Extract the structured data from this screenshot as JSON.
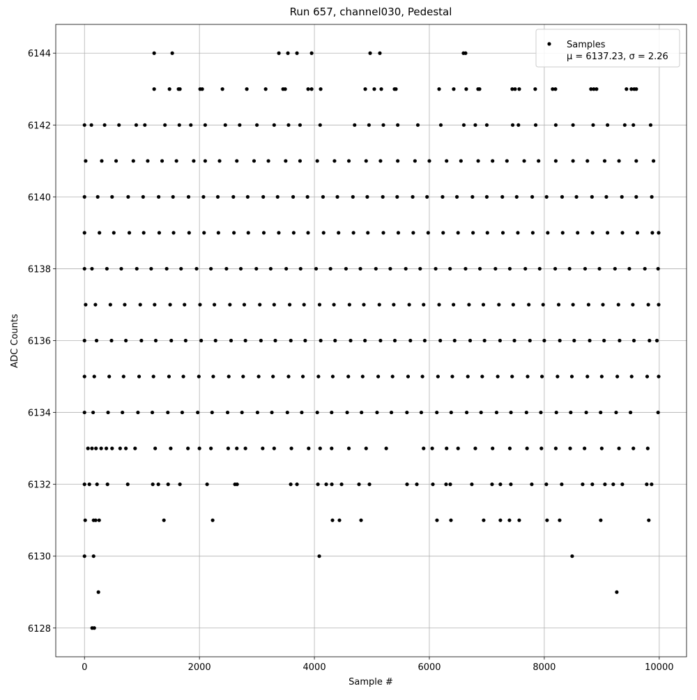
{
  "chart_data": {
    "type": "scatter",
    "title": "Run 657, channel030, Pedestal",
    "x_label": "Sample #",
    "y_label": "ADC Counts",
    "xlim": [
      -500,
      10475
    ],
    "ylim": [
      6127.2,
      6144.8
    ],
    "xticks": [
      0,
      2000,
      4000,
      6000,
      8000,
      10000
    ],
    "yticks": [
      6128,
      6130,
      6132,
      6134,
      6136,
      6138,
      6140,
      6142,
      6144
    ],
    "grid": true,
    "legend": "upper right",
    "legend_note": "μ = 6137.23, σ = 2.26",
    "series": [
      {
        "name": "Samples",
        "color": "#000000",
        "x": [
          1212,
          1527,
          3382,
          3539,
          3697,
          3952,
          4970,
          5139,
          6594,
          6630,
          1212,
          1479,
          1636,
          1660,
          2012,
          2048,
          2400,
          2824,
          3152,
          3455,
          3491,
          3891,
          3952,
          4109,
          4885,
          5042,
          5164,
          5394,
          5418,
          6170,
          6424,
          6642,
          6848,
          6873,
          7442,
          7491,
          7564,
          7842,
          8145,
          8194,
          8812,
          8861,
          8909,
          9430,
          9515,
          9564,
          9600,
          0,
          120,
          350,
          600,
          900,
          1050,
          1400,
          1650,
          1850,
          2100,
          2450,
          2700,
          3000,
          3300,
          3550,
          3750,
          4100,
          4700,
          4950,
          5200,
          5450,
          5800,
          6200,
          6600,
          6800,
          7000,
          7450,
          7550,
          7850,
          8200,
          8500,
          8850,
          9100,
          9400,
          9550,
          9850,
          20,
          300,
          550,
          850,
          1100,
          1350,
          1600,
          1900,
          2100,
          2350,
          2650,
          2950,
          3200,
          3500,
          3750,
          4050,
          4350,
          4600,
          4900,
          5150,
          5450,
          5750,
          6000,
          6300,
          6550,
          6850,
          7100,
          7350,
          7650,
          7900,
          8200,
          8500,
          8750,
          9050,
          9300,
          9600,
          9900,
          0,
          230,
          480,
          760,
          1020,
          1290,
          1540,
          1810,
          2070,
          2320,
          2590,
          2840,
          3110,
          3360,
          3630,
          3880,
          4150,
          4400,
          4670,
          4920,
          5190,
          5440,
          5710,
          5960,
          6230,
          6480,
          6750,
          7000,
          7270,
          7520,
          7790,
          8040,
          8310,
          8560,
          8830,
          9080,
          9350,
          9600,
          9870,
          0,
          260,
          510,
          780,
          1030,
          1300,
          1550,
          1820,
          2080,
          2330,
          2600,
          2850,
          3120,
          3380,
          3640,
          3890,
          4160,
          4420,
          4680,
          4930,
          5200,
          5460,
          5720,
          5980,
          6240,
          6500,
          6760,
          7010,
          7280,
          7540,
          7800,
          8060,
          8320,
          8580,
          8840,
          9100,
          9360,
          9620,
          9880,
          9990,
          0,
          130,
          390,
          640,
          910,
          1160,
          1430,
          1680,
          1950,
          2200,
          2470,
          2720,
          2990,
          3240,
          3510,
          3760,
          4030,
          4280,
          4550,
          4800,
          5070,
          5320,
          5590,
          5840,
          6110,
          6360,
          6630,
          6880,
          7150,
          7400,
          7670,
          7920,
          8190,
          8440,
          8710,
          8960,
          9230,
          9480,
          9750,
          9980,
          20,
          190,
          450,
          700,
          970,
          1220,
          1490,
          1740,
          2010,
          2260,
          2530,
          2780,
          3050,
          3300,
          3570,
          3820,
          4090,
          4340,
          4610,
          4860,
          5130,
          5380,
          5650,
          5900,
          6170,
          6420,
          6690,
          6940,
          7210,
          7460,
          7730,
          7980,
          8250,
          8500,
          8770,
          9020,
          9290,
          9540,
          9810,
          9990,
          0,
          210,
          470,
          720,
          990,
          1240,
          1510,
          1760,
          2030,
          2280,
          2550,
          2800,
          3070,
          3320,
          3590,
          3840,
          4110,
          4360,
          4630,
          4880,
          5150,
          5400,
          5670,
          5920,
          6190,
          6440,
          6710,
          6960,
          7230,
          7480,
          7750,
          8000,
          8270,
          8520,
          8790,
          9040,
          9310,
          9560,
          9830,
          9960,
          0,
          170,
          430,
          680,
          950,
          1200,
          1470,
          1720,
          1990,
          2240,
          2510,
          2760,
          3030,
          3280,
          3550,
          3800,
          4070,
          4320,
          4590,
          4840,
          5110,
          5360,
          5630,
          5880,
          6150,
          6400,
          6670,
          6920,
          7190,
          7440,
          7710,
          7960,
          8230,
          8480,
          8750,
          9000,
          9270,
          9520,
          9790,
          9990,
          0,
          150,
          410,
          660,
          930,
          1180,
          1450,
          1700,
          1970,
          2220,
          2490,
          2740,
          3010,
          3260,
          3530,
          3780,
          4050,
          4300,
          4570,
          4820,
          5090,
          5340,
          5610,
          5860,
          6130,
          6380,
          6650,
          6900,
          7170,
          7420,
          7690,
          7940,
          8210,
          8460,
          8730,
          8980,
          9250,
          9500,
          9980,
          60,
          130,
          200,
          290,
          380,
          480,
          620,
          720,
          880,
          1230,
          1500,
          1800,
          2000,
          2200,
          2500,
          2650,
          2800,
          3100,
          3300,
          3600,
          3900,
          4100,
          4300,
          4600,
          4900,
          5250,
          5900,
          6050,
          6300,
          6500,
          6800,
          7100,
          7400,
          7700,
          7950,
          8200,
          8450,
          8700,
          9000,
          9300,
          9550,
          9800,
          0,
          85,
          218,
          400,
          752,
          1188,
          1285,
          1455,
          1660,
          2133,
          2618,
          2655,
          3588,
          3697,
          4061,
          4206,
          4303,
          4473,
          4776,
          4958,
          5612,
          5782,
          6061,
          6291,
          6364,
          6739,
          7091,
          7236,
          7418,
          7782,
          8036,
          8303,
          8667,
          8836,
          9055,
          9200,
          9358,
          9782,
          9867,
          12,
          158,
          194,
          255,
          1382,
          2230,
          4315,
          4436,
          4812,
          6133,
          6376,
          6945,
          7236,
          7394,
          7564,
          8048,
          8267,
          8982,
          9818,
          0,
          158,
          4085,
          8485,
          242,
          9261,
          133,
          170
        ],
        "values": [
          6144,
          6144,
          6144,
          6144,
          6144,
          6144,
          6144,
          6144,
          6144,
          6144,
          6143,
          6143,
          6143,
          6143,
          6143,
          6143,
          6143,
          6143,
          6143,
          6143,
          6143,
          6143,
          6143,
          6143,
          6143,
          6143,
          6143,
          6143,
          6143,
          6143,
          6143,
          6143,
          6143,
          6143,
          6143,
          6143,
          6143,
          6143,
          6143,
          6143,
          6143,
          6143,
          6143,
          6143,
          6143,
          6143,
          6143,
          6142,
          6142,
          6142,
          6142,
          6142,
          6142,
          6142,
          6142,
          6142,
          6142,
          6142,
          6142,
          6142,
          6142,
          6142,
          6142,
          6142,
          6142,
          6142,
          6142,
          6142,
          6142,
          6142,
          6142,
          6142,
          6142,
          6142,
          6142,
          6142,
          6142,
          6142,
          6142,
          6142,
          6142,
          6142,
          6142,
          6141,
          6141,
          6141,
          6141,
          6141,
          6141,
          6141,
          6141,
          6141,
          6141,
          6141,
          6141,
          6141,
          6141,
          6141,
          6141,
          6141,
          6141,
          6141,
          6141,
          6141,
          6141,
          6141,
          6141,
          6141,
          6141,
          6141,
          6141,
          6141,
          6141,
          6141,
          6141,
          6141,
          6141,
          6141,
          6141,
          6141,
          6140,
          6140,
          6140,
          6140,
          6140,
          6140,
          6140,
          6140,
          6140,
          6140,
          6140,
          6140,
          6140,
          6140,
          6140,
          6140,
          6140,
          6140,
          6140,
          6140,
          6140,
          6140,
          6140,
          6140,
          6140,
          6140,
          6140,
          6140,
          6140,
          6140,
          6140,
          6140,
          6140,
          6140,
          6140,
          6140,
          6140,
          6140,
          6140,
          6139,
          6139,
          6139,
          6139,
          6139,
          6139,
          6139,
          6139,
          6139,
          6139,
          6139,
          6139,
          6139,
          6139,
          6139,
          6139,
          6139,
          6139,
          6139,
          6139,
          6139,
          6139,
          6139,
          6139,
          6139,
          6139,
          6139,
          6139,
          6139,
          6139,
          6139,
          6139,
          6139,
          6139,
          6139,
          6139,
          6139,
          6139,
          6139,
          6139,
          6138,
          6138,
          6138,
          6138,
          6138,
          6138,
          6138,
          6138,
          6138,
          6138,
          6138,
          6138,
          6138,
          6138,
          6138,
          6138,
          6138,
          6138,
          6138,
          6138,
          6138,
          6138,
          6138,
          6138,
          6138,
          6138,
          6138,
          6138,
          6138,
          6138,
          6138,
          6138,
          6138,
          6138,
          6138,
          6138,
          6138,
          6138,
          6138,
          6138,
          6137,
          6137,
          6137,
          6137,
          6137,
          6137,
          6137,
          6137,
          6137,
          6137,
          6137,
          6137,
          6137,
          6137,
          6137,
          6137,
          6137,
          6137,
          6137,
          6137,
          6137,
          6137,
          6137,
          6137,
          6137,
          6137,
          6137,
          6137,
          6137,
          6137,
          6137,
          6137,
          6137,
          6137,
          6137,
          6137,
          6137,
          6137,
          6137,
          6137,
          6136,
          6136,
          6136,
          6136,
          6136,
          6136,
          6136,
          6136,
          6136,
          6136,
          6136,
          6136,
          6136,
          6136,
          6136,
          6136,
          6136,
          6136,
          6136,
          6136,
          6136,
          6136,
          6136,
          6136,
          6136,
          6136,
          6136,
          6136,
          6136,
          6136,
          6136,
          6136,
          6136,
          6136,
          6136,
          6136,
          6136,
          6136,
          6136,
          6136,
          6135,
          6135,
          6135,
          6135,
          6135,
          6135,
          6135,
          6135,
          6135,
          6135,
          6135,
          6135,
          6135,
          6135,
          6135,
          6135,
          6135,
          6135,
          6135,
          6135,
          6135,
          6135,
          6135,
          6135,
          6135,
          6135,
          6135,
          6135,
          6135,
          6135,
          6135,
          6135,
          6135,
          6135,
          6135,
          6135,
          6135,
          6135,
          6135,
          6135,
          6134,
          6134,
          6134,
          6134,
          6134,
          6134,
          6134,
          6134,
          6134,
          6134,
          6134,
          6134,
          6134,
          6134,
          6134,
          6134,
          6134,
          6134,
          6134,
          6134,
          6134,
          6134,
          6134,
          6134,
          6134,
          6134,
          6134,
          6134,
          6134,
          6134,
          6134,
          6134,
          6134,
          6134,
          6134,
          6134,
          6134,
          6134,
          6134,
          6133,
          6133,
          6133,
          6133,
          6133,
          6133,
          6133,
          6133,
          6133,
          6133,
          6133,
          6133,
          6133,
          6133,
          6133,
          6133,
          6133,
          6133,
          6133,
          6133,
          6133,
          6133,
          6133,
          6133,
          6133,
          6133,
          6133,
          6133,
          6133,
          6133,
          6133,
          6133,
          6133,
          6133,
          6133,
          6133,
          6133,
          6133,
          6133,
          6133,
          6133,
          6133,
          6132,
          6132,
          6132,
          6132,
          6132,
          6132,
          6132,
          6132,
          6132,
          6132,
          6132,
          6132,
          6132,
          6132,
          6132,
          6132,
          6132,
          6132,
          6132,
          6132,
          6132,
          6132,
          6132,
          6132,
          6132,
          6132,
          6132,
          6132,
          6132,
          6132,
          6132,
          6132,
          6132,
          6132,
          6132,
          6132,
          6132,
          6132,
          6132,
          6131,
          6131,
          6131,
          6131,
          6131,
          6131,
          6131,
          6131,
          6131,
          6131,
          6131,
          6131,
          6131,
          6131,
          6131,
          6131,
          6131,
          6131,
          6131,
          6130,
          6130,
          6130,
          6130,
          6129,
          6129,
          6128,
          6128
        ]
      }
    ]
  }
}
